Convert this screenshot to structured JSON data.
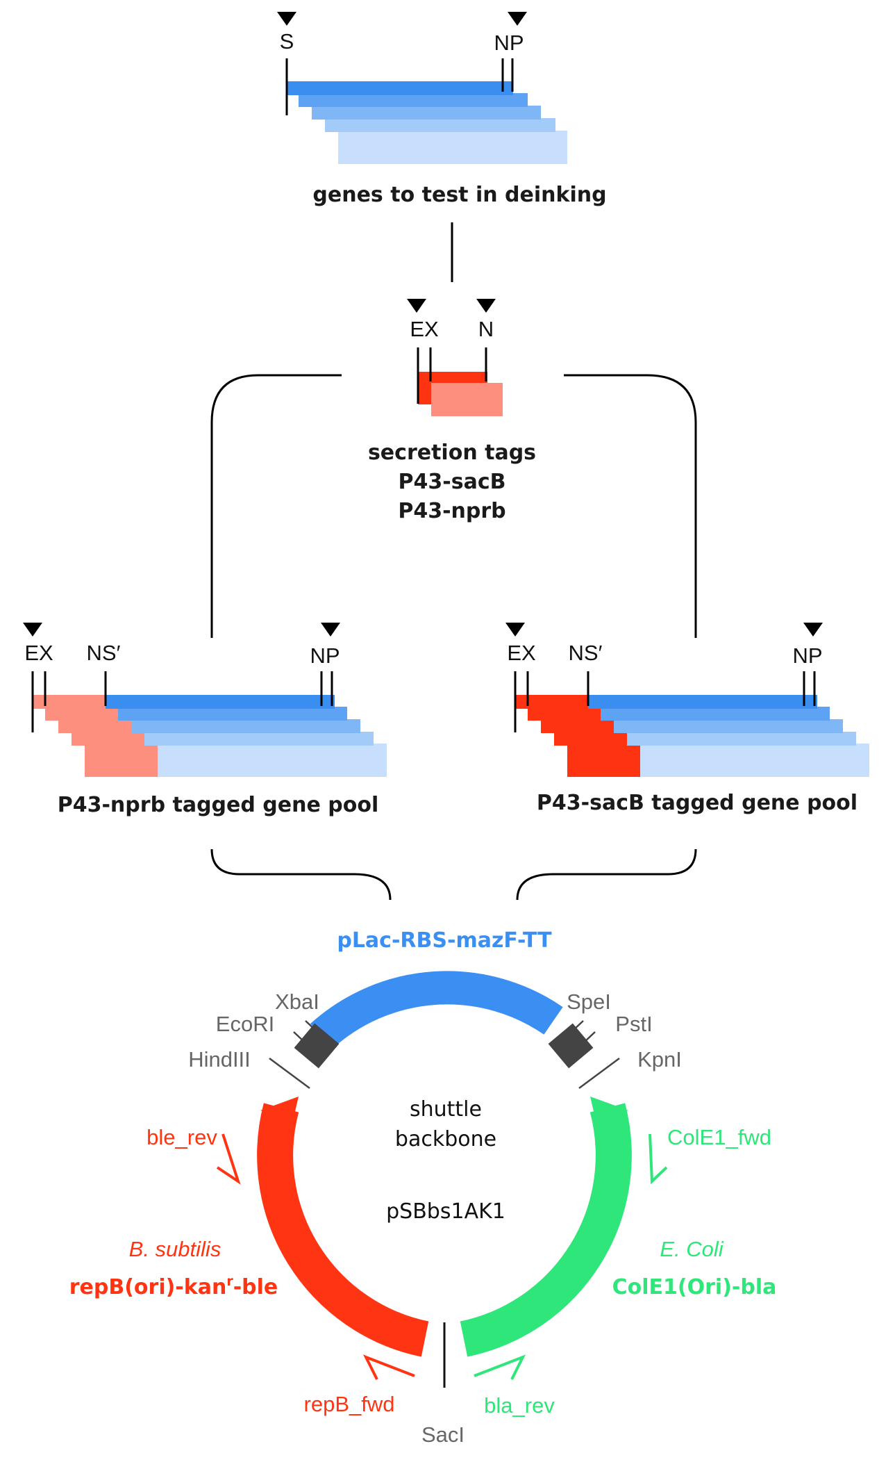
{
  "colors": {
    "gene_blue": [
      "#3a8ef0",
      "#5ea3f3",
      "#7fb6f6",
      "#a3cbf9",
      "#c7dffc"
    ],
    "tag_red": "#fe3312",
    "tag_salmon": "#fc8f7e",
    "mazF_blue": "#3c8ff2",
    "ori_red": "#ff3412",
    "ecoli_green": "#2ee67a",
    "site_box": "#444444",
    "line": "#111111"
  },
  "genes": {
    "sites": [
      "S",
      "NP"
    ],
    "caption": "genes to test in deinking"
  },
  "tags": {
    "sites": [
      "EX",
      "N"
    ],
    "caption": [
      "secretion tags",
      "P43-sacB",
      "P43-nprb"
    ]
  },
  "pool_left": {
    "sites": [
      "EX",
      "NS′",
      "NP"
    ],
    "caption": "P43-nprb tagged gene pool"
  },
  "pool_right": {
    "sites": [
      "EX",
      "NS′",
      "NP"
    ],
    "caption": "P43-sacB tagged gene pool"
  },
  "plasmid": {
    "top_module": "pLac-RBS-mazF-TT",
    "center_line1": "shuttle",
    "center_line2": "backbone",
    "name": "pSBbs1AK1",
    "enzymes": {
      "xbai": "XbaI",
      "ecori": "EcoRI",
      "hindiii": "HindIII",
      "spei": "SpeI",
      "psti": "PstI",
      "kpni": "KpnI",
      "saci": "SacI"
    },
    "left_module": {
      "organism": "B. subtilis",
      "name_a": "repB(ori)-kan",
      "name_sup": "r",
      "name_b": "-ble"
    },
    "right_module": {
      "organism": "E. Coli",
      "name": "ColE1(Ori)-bla"
    },
    "primers": {
      "ble_rev": "ble_rev",
      "repB_fwd": "repB_fwd",
      "ColE1_fwd": "ColE1_fwd",
      "bla_rev": "bla_rev"
    }
  }
}
